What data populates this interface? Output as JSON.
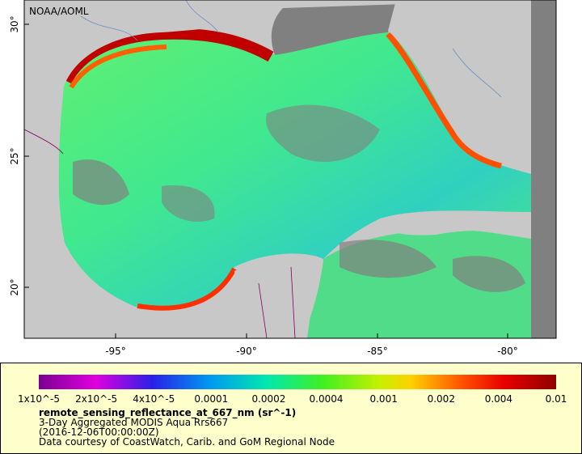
{
  "map": {
    "credit": "NOAA/AOML",
    "lat_ticks": [
      "30°",
      "25°",
      "20°"
    ],
    "lon_ticks": [
      "-95°",
      "-90°",
      "-85°",
      "-80°"
    ],
    "colorbar": {
      "ticks": [
        "1x10^-5",
        "2x10^-5",
        "4x10^-5",
        "0.0001",
        "0.0002",
        "0.0004",
        "0.001",
        "0.002",
        "0.004",
        "0.01"
      ],
      "variable": "remote_sensing_reflectance_at_667_nm (sr^-1)",
      "lines": [
        "3-Day Aggregated MODIS Aqua Rrs667",
        "(2016-12-06T00:00:00Z)",
        "Data courtesy of CoastWatch, Carib. and GoM Regional Node"
      ]
    }
  }
}
